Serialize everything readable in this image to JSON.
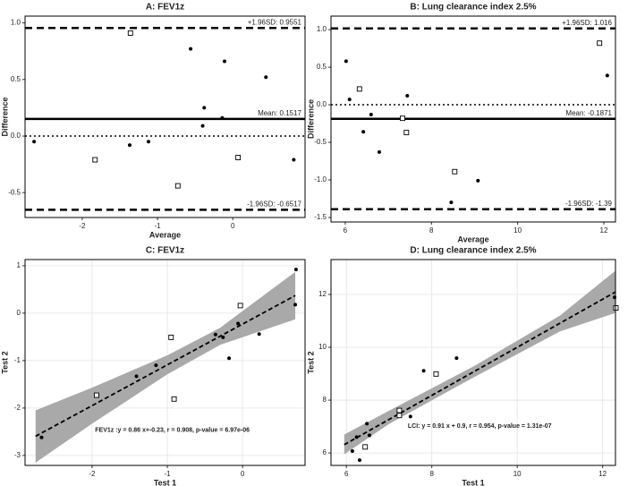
{
  "chart_data": [
    {
      "type": "scatter",
      "title": "A: FEV1z",
      "x_label": "Average",
      "y_label": "Difference",
      "xlim": [
        -2.76,
        0.96
      ],
      "ylim": [
        -0.72,
        1.06
      ],
      "xticks": [
        -2,
        -1,
        0
      ],
      "yticks": [
        -0.5,
        {
          "value": 0,
          "label": "0.0"
        },
        0.5,
        {
          "value": 1,
          "label": "1.0"
        }
      ],
      "grid": false,
      "series": [
        {
          "marker": "circle",
          "color": "#000000",
          "x": [
            -2.64,
            -1.37,
            -1.12,
            -0.56,
            -0.38,
            -0.4,
            -0.14,
            -0.11,
            0.44,
            0.81
          ],
          "values": [
            -0.05,
            -0.08,
            -0.05,
            0.77,
            0.25,
            0.09,
            0.16,
            0.66,
            0.52,
            -0.21
          ]
        },
        {
          "marker": "square",
          "color": "#000000",
          "x": [
            -1.83,
            -1.36,
            -0.73,
            0.07
          ],
          "values": [
            -0.21,
            0.91,
            -0.44,
            -0.19
          ]
        }
      ],
      "hlines": [
        {
          "value": 0.9551,
          "label": "+1.96SD: 0.9551",
          "style": "dashed"
        },
        {
          "value": 0.1517,
          "label": "Mean: 0.1517",
          "style": "solid"
        },
        {
          "value": -0.6517,
          "label": "-1.96SD: -0.6517",
          "style": "dashed"
        },
        {
          "value": 0,
          "style": "dotted"
        }
      ]
    },
    {
      "type": "scatter",
      "title": "B: Lung clearance index 2.5%",
      "x_label": "Average",
      "y_label": "Difference",
      "xlim": [
        5.67,
        12.27
      ],
      "ylim": [
        -1.56,
        1.18
      ],
      "xticks": [
        6,
        8,
        10,
        12
      ],
      "yticks": [
        -1.5,
        {
          "value": -1,
          "label": "-1.0"
        },
        -0.5,
        {
          "value": 0,
          "label": "0.0"
        },
        0.5,
        {
          "value": 1,
          "label": "1.0"
        }
      ],
      "grid": false,
      "series": [
        {
          "marker": "circle",
          "color": "#000000",
          "x": [
            6.02,
            6.1,
            6.6,
            6.42,
            6.79,
            7.44,
            8.46,
            9.08,
            12.08
          ],
          "values": [
            0.58,
            0.07,
            -0.13,
            -0.36,
            -0.63,
            0.12,
            -1.3,
            -1.01,
            0.39
          ]
        },
        {
          "marker": "square",
          "color": "#000000",
          "x": [
            6.33,
            7.33,
            7.42,
            8.54,
            11.9
          ],
          "values": [
            0.21,
            -0.18,
            -0.37,
            -0.89,
            0.82
          ]
        }
      ],
      "hlines": [
        {
          "value": 1.016,
          "label": "+1.96SD: 1.016",
          "style": "dashed"
        },
        {
          "value": -0.1871,
          "label": "Mean: -0.1871",
          "style": "solid"
        },
        {
          "value": -1.39,
          "label": "-1.96SD: -1.39",
          "style": "dashed"
        },
        {
          "value": 0,
          "style": "dotted"
        }
      ]
    },
    {
      "type": "regression",
      "title": "C: FEV1z",
      "x_label": "Test 1",
      "y_label": "Test 2",
      "xlim": [
        -2.89,
        0.83
      ],
      "ylim": [
        -3.21,
        1.13
      ],
      "xticks": [
        -2,
        -1,
        0
      ],
      "yticks": [
        -3,
        -2,
        -1,
        0,
        1
      ],
      "grid": true,
      "series": [
        {
          "marker": "circle",
          "color": "#000000",
          "x": [
            -2.67,
            -1.41,
            -1.15,
            -0.18,
            -0.26,
            -0.36,
            -0.06,
            0.22,
            0.7,
            0.71
          ],
          "values": [
            -2.62,
            -1.33,
            -1.1,
            -0.95,
            -0.51,
            -0.45,
            -0.22,
            -0.44,
            0.18,
            0.92
          ]
        },
        {
          "marker": "square",
          "color": "#000000",
          "x": [
            -1.94,
            -0.91,
            -0.95,
            -0.03
          ],
          "values": [
            -1.73,
            -1.81,
            -0.51,
            0.16
          ]
        }
      ],
      "fit": {
        "slope": 0.86,
        "intercept": -0.23
      },
      "band": {
        "color": "#a9a9a9",
        "x": [
          -2.75,
          -2,
          -1,
          -0.3,
          0.7
        ],
        "lower": [
          -3.15,
          -2.33,
          -1.29,
          -0.67,
          -0.13
        ],
        "upper": [
          -2.05,
          -1.57,
          -0.89,
          -0.31,
          0.87
        ]
      },
      "annotation": "FEV1z :y = 0.86 x+-0.23, r = 0.908, p-value = 6.97e-06"
    },
    {
      "type": "regression",
      "title": "D: Lung clearance index 2.5%",
      "x_label": "Test 1",
      "y_label": "Test 2",
      "xlim": [
        5.64,
        12.3
      ],
      "ylim": [
        5.53,
        13.32
      ],
      "xticks": [
        6,
        8,
        10,
        12
      ],
      "yticks": [
        6,
        8,
        10,
        12
      ],
      "grid": true,
      "series": [
        {
          "marker": "circle",
          "color": "#000000",
          "x": [
            6.31,
            6.14,
            6.54,
            6.24,
            6.48,
            7.5,
            7.81,
            8.58,
            12.28
          ],
          "values": [
            5.73,
            6.07,
            6.67,
            6.6,
            7.11,
            7.38,
            9.11,
            9.59,
            11.89
          ]
        },
        {
          "marker": "square",
          "color": "#000000",
          "x": [
            6.44,
            7.24,
            7.24,
            8.1,
            12.31
          ],
          "values": [
            6.23,
            7.42,
            7.61,
            8.99,
            11.49
          ]
        }
      ],
      "fit": {
        "slope": 0.91,
        "intercept": 0.9
      },
      "band": {
        "color": "#a9a9a9",
        "x": [
          5.95,
          7,
          9,
          11,
          12.3
        ],
        "lower": [
          5.95,
          7.1,
          8.88,
          10.6,
          11.3
        ],
        "upper": [
          6.7,
          7.6,
          9.3,
          11.2,
          12.9
        ]
      },
      "annotation": "LCI: y = 0.91 x + 0.9, r = 0.954, p-value = 1.31e-07"
    }
  ]
}
